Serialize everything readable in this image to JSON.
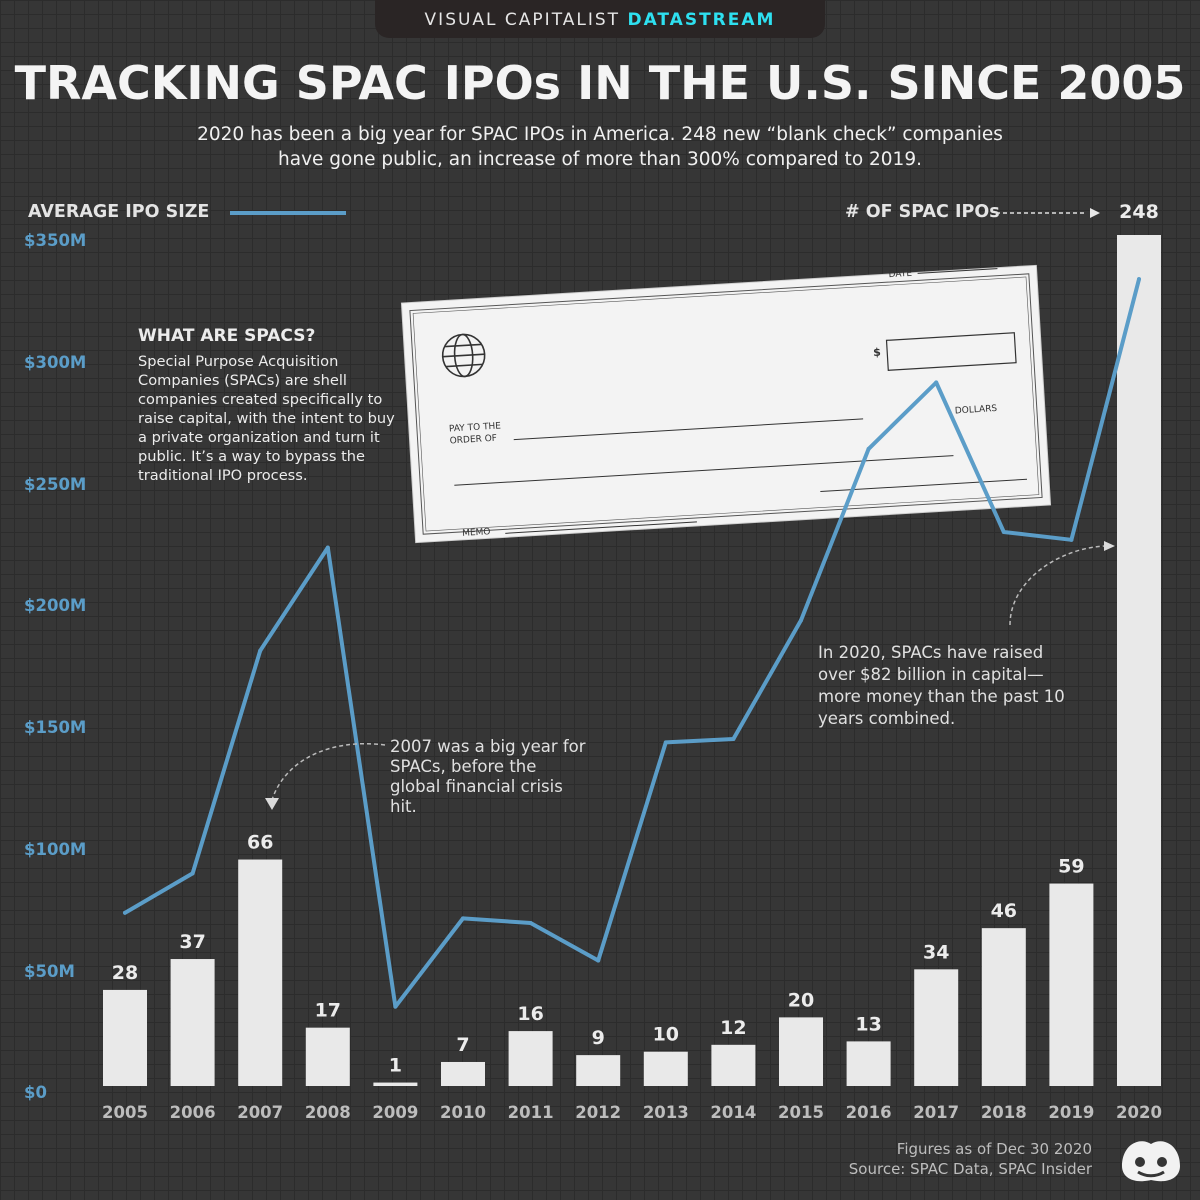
{
  "brand": {
    "left": "VISUAL CAPITALIST",
    "right": "DATASTREAM"
  },
  "header": {
    "title": "TRACKING SPAC IPOs IN THE U.S. SINCE 2005",
    "subtitle_line1": "2020 has been a big year for SPAC IPOs in America. 248 new “blank check” companies",
    "subtitle_line2": "have gone public, an increase of more than 300% compared to 2019."
  },
  "legend": {
    "line_label": "AVERAGE IPO SIZE",
    "bar_label": "# OF SPAC IPOs"
  },
  "explainer": {
    "heading": "WHAT ARE SPACS?",
    "body": "Special Purpose Acquisition Companies (SPACs) are shell companies created specifically to raise capital, with the intent to buy a private organization and turn it public. It’s a way to bypass the traditional IPO process."
  },
  "check": {
    "date_label": "DATE",
    "dollar_sign": "$",
    "pay_line1": "PAY TO THE",
    "pay_line2": "ORDER OF",
    "dollars_label": "DOLLARS",
    "memo_label": "MEMO"
  },
  "annotations": {
    "a2007": "2007 was a big year for SPACs, before the global financial crisis hit.",
    "a2020": "In 2020, SPACs have raised over $82 billion in capital—more money than the past 10 years combined."
  },
  "footer": {
    "note": "Figures as of Dec 30 2020",
    "source": "Source: SPAC Data, SPAC Insider"
  },
  "colors": {
    "line": "#5b9dc8",
    "bar": "#e9e9e9",
    "background": "#363636"
  },
  "chart_data": {
    "type": "bar",
    "categories": [
      "2005",
      "2006",
      "2007",
      "2008",
      "2009",
      "2010",
      "2011",
      "2012",
      "2013",
      "2014",
      "2015",
      "2016",
      "2017",
      "2018",
      "2019",
      "2020"
    ],
    "series": [
      {
        "name": "# OF SPAC IPOs",
        "type": "bar",
        "values": [
          28,
          37,
          66,
          17,
          1,
          7,
          16,
          9,
          10,
          12,
          20,
          13,
          34,
          46,
          59,
          248
        ]
      },
      {
        "name": "AVERAGE IPO SIZE",
        "type": "line",
        "values": [
          73.7,
          89.9,
          181.5,
          223.9,
          35.1,
          71.4,
          69.5,
          54.1,
          143.8,
          145.2,
          194.0,
          264.5,
          291.8,
          230.3,
          227.1,
          334.3
        ]
      }
    ],
    "y_axis": {
      "ticks": [
        "$0",
        "$50M",
        "$100M",
        "$150M",
        "$200M",
        "$250M",
        "$300M",
        "$350M"
      ],
      "ylim": [
        0,
        350
      ]
    },
    "bar_label_max": 248
  }
}
